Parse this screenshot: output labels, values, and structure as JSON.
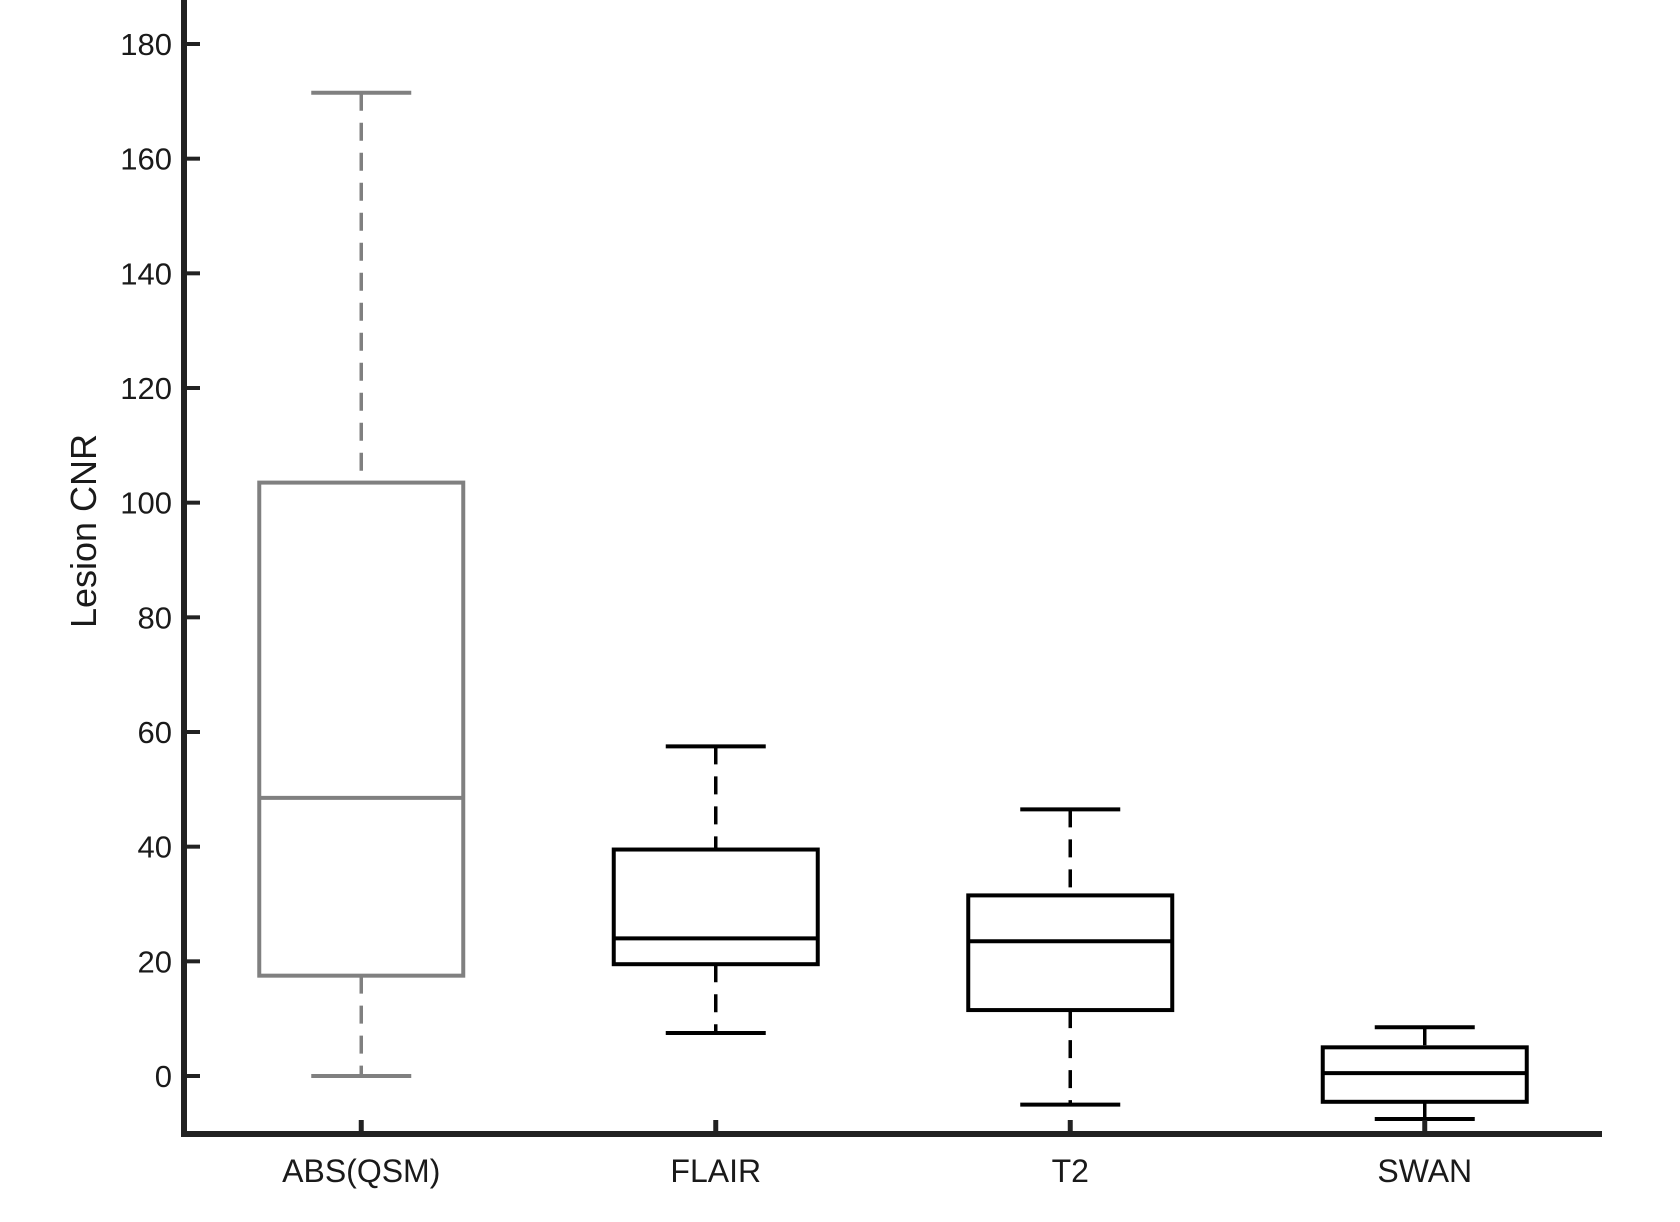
{
  "chart_data": {
    "type": "box",
    "title": "",
    "xlabel": "",
    "ylabel": "Lesion CNR",
    "ylim": [
      -10,
      189
    ],
    "yticks": [
      0,
      20,
      40,
      60,
      80,
      100,
      120,
      140,
      160,
      180
    ],
    "grid": false,
    "categories": [
      "ABS(QSM)",
      "FLAIR",
      "T2",
      "SWAN"
    ],
    "colors": {
      "ABS(QSM)": "#808080",
      "FLAIR": "#000000",
      "T2": "#000000",
      "SWAN": "#000000",
      "axis": "#222222"
    },
    "boxes": [
      {
        "category": "ABS(QSM)",
        "whisker_low": 0,
        "q1": 17.5,
        "median": 48.5,
        "q3": 103.5,
        "whisker_high": 171.5
      },
      {
        "category": "FLAIR",
        "whisker_low": 7.5,
        "q1": 19.5,
        "median": 24,
        "q3": 39.5,
        "whisker_high": 57.5
      },
      {
        "category": "T2",
        "whisker_low": -5,
        "q1": 11.5,
        "median": 23.5,
        "q3": 31.5,
        "whisker_high": 46.5
      },
      {
        "category": "SWAN",
        "whisker_low": -7.5,
        "q1": -4.5,
        "median": 0.5,
        "q3": 5,
        "whisker_high": 8.5
      }
    ]
  }
}
